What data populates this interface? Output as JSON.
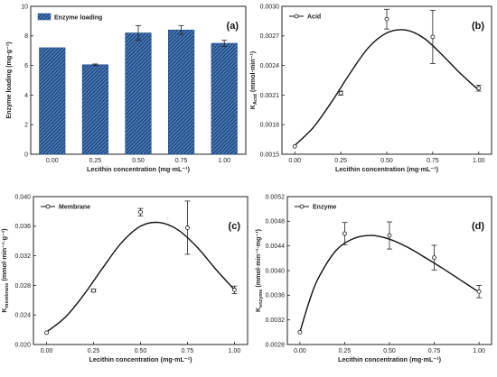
{
  "chart_data": [
    {
      "id": "a",
      "type": "bar",
      "panel_label": "(a)",
      "legend": "Enzyme loading",
      "legend_position": "top-left",
      "xlabel": "Lecithin concentration (mg·mL⁻¹)",
      "ylabel": "Enzyme loading (mg·g⁻¹)",
      "categories": [
        "0.00",
        "0.25",
        "0.50",
        "0.75",
        "1.00"
      ],
      "values": [
        7.2,
        6.05,
        8.2,
        8.4,
        7.5
      ],
      "errors": [
        0,
        0.05,
        0.5,
        0.3,
        0.2
      ],
      "ylim": [
        0,
        10
      ],
      "yticks": [
        "0",
        "2",
        "4",
        "6",
        "8",
        "10"
      ],
      "bar_color": "#1f4e8c",
      "hatch_color": "#6f93c6",
      "grid": false
    },
    {
      "id": "b",
      "type": "line",
      "panel_label": "(b)",
      "legend": "Acid",
      "legend_position": "top-left",
      "xlabel": "Lecithin concentration (mg·mL⁻¹)",
      "ylabel_main": "K",
      "ylabel_sub": "Acid",
      "ylabel_rest": " (mmol·min⁻¹)",
      "x": [
        0.0,
        0.25,
        0.5,
        0.75,
        1.0
      ],
      "y": [
        0.00158,
        0.00212,
        0.00287,
        0.00269,
        0.00217
      ],
      "errors": [
        0,
        2e-05,
        0.0001,
        0.00027,
        3e-05
      ],
      "fit": [
        [
          0.0,
          0.00159
        ],
        [
          0.1,
          0.00177
        ],
        [
          0.2,
          0.00203
        ],
        [
          0.3,
          0.00232
        ],
        [
          0.4,
          0.00258
        ],
        [
          0.5,
          0.00273
        ],
        [
          0.6,
          0.00276
        ],
        [
          0.7,
          0.00268
        ],
        [
          0.8,
          0.00251
        ],
        [
          0.9,
          0.00232
        ],
        [
          1.0,
          0.00215
        ]
      ],
      "xlim": [
        -0.07,
        1.07
      ],
      "ylim": [
        0.0015,
        0.003
      ],
      "xticks": [
        0,
        0.25,
        0.5,
        0.75,
        1
      ],
      "xtick_labels": [
        "0.00",
        "0.25",
        "0.50",
        "0.75",
        "1.00"
      ],
      "yticks": [
        0.0015,
        0.0018,
        0.0021,
        0.0024,
        0.0027,
        0.003
      ],
      "ytick_labels": [
        "0.0015",
        "0.0018",
        "0.0021",
        "0.0024",
        "0.0027",
        "0.0030"
      ],
      "grid": false
    },
    {
      "id": "c",
      "type": "line",
      "panel_label": "(c)",
      "legend": "Membrane",
      "legend_position": "top-left",
      "xlabel": "Lecithin concentration (mg·mL⁻¹)",
      "ylabel_main": "K",
      "ylabel_sub": "membrane",
      "ylabel_rest": " (mmol·min⁻¹·g⁻¹)",
      "x": [
        0.0,
        0.25,
        0.5,
        0.75,
        1.0
      ],
      "y": [
        0.0216,
        0.0273,
        0.0379,
        0.0358,
        0.0274
      ],
      "errors": [
        0,
        0.0002,
        0.0005,
        0.0036,
        0.0005
      ],
      "fit": [
        [
          0.0,
          0.0217
        ],
        [
          0.1,
          0.0237
        ],
        [
          0.2,
          0.0268
        ],
        [
          0.3,
          0.0304
        ],
        [
          0.4,
          0.0338
        ],
        [
          0.5,
          0.036
        ],
        [
          0.6,
          0.0365
        ],
        [
          0.7,
          0.0355
        ],
        [
          0.8,
          0.0332
        ],
        [
          0.9,
          0.0302
        ],
        [
          1.0,
          0.0274
        ]
      ],
      "xlim": [
        -0.07,
        1.07
      ],
      "ylim": [
        0.02,
        0.04
      ],
      "xticks": [
        0,
        0.25,
        0.5,
        0.75,
        1
      ],
      "xtick_labels": [
        "0.00",
        "0.25",
        "0.50",
        "0.75",
        "1.00"
      ],
      "yticks": [
        0.02,
        0.024,
        0.028,
        0.032,
        0.036,
        0.04
      ],
      "ytick_labels": [
        "0.020",
        "0.024",
        "0.028",
        "0.032",
        "0.036",
        "0.040"
      ],
      "grid": false
    },
    {
      "id": "d",
      "type": "line",
      "panel_label": "(d)",
      "legend": "Enzyme",
      "legend_position": "top-left",
      "xlabel": "Lecithin concentration (mg·mL⁻¹)",
      "ylabel_main": "K",
      "ylabel_sub": "enzyme",
      "ylabel_rest": " (mmol·min⁻¹·mg⁻¹)",
      "x": [
        0.0,
        0.25,
        0.5,
        0.75,
        1.0
      ],
      "y": [
        0.003,
        0.0046,
        0.00457,
        0.00421,
        0.00366
      ],
      "errors": [
        0,
        0.00018,
        0.00022,
        0.0002,
        0.0001
      ],
      "fit": [
        [
          0.0,
          0.003
        ],
        [
          0.05,
          0.00348
        ],
        [
          0.1,
          0.00386
        ],
        [
          0.2,
          0.00432
        ],
        [
          0.3,
          0.00452
        ],
        [
          0.4,
          0.00457
        ],
        [
          0.5,
          0.00451
        ],
        [
          0.6,
          0.00438
        ],
        [
          0.7,
          0.00421
        ],
        [
          0.8,
          0.00403
        ],
        [
          0.9,
          0.00384
        ],
        [
          1.0,
          0.00365
        ]
      ],
      "xlim": [
        -0.07,
        1.07
      ],
      "ylim": [
        0.0028,
        0.0052
      ],
      "xticks": [
        0,
        0.25,
        0.5,
        0.75,
        1
      ],
      "xtick_labels": [
        "0.00",
        "0.25",
        "0.50",
        "0.75",
        "1.00"
      ],
      "yticks": [
        0.0028,
        0.0032,
        0.0036,
        0.004,
        0.0044,
        0.0048,
        0.0052
      ],
      "ytick_labels": [
        "0.0028",
        "0.0032",
        "0.0036",
        "0.0040",
        "0.0044",
        "0.0048",
        "0.0052"
      ],
      "grid": false
    }
  ]
}
